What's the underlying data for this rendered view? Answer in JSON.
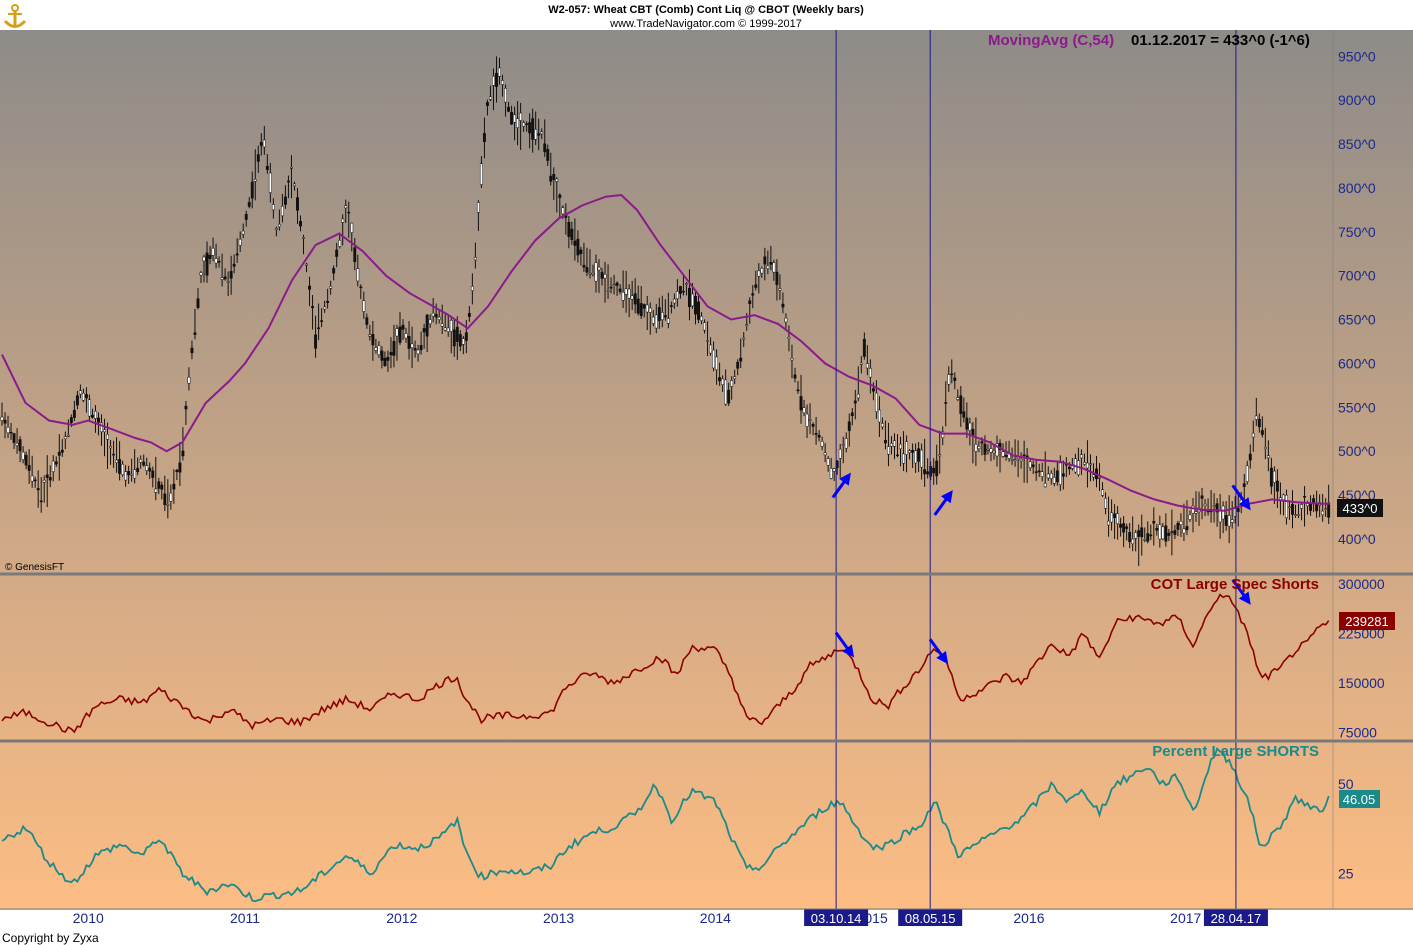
{
  "header": {
    "line1": "W2-057:  Wheat CBT (Comb) Cont Liq @ CBOT  (Weekly bars)",
    "line2": "www.TradeNavigator.com © 1999-2017"
  },
  "footer": {
    "copyright": "Copyright by Zyxa",
    "genesis": "© GenesisFT"
  },
  "colors": {
    "bg_top": "#8e8b88",
    "bg_bottom": "#fdbd84",
    "price": "#000000",
    "moving_avg": "#8b1a8b",
    "cot": "#8b0000",
    "percent": "#1a8a8a",
    "vline": "#1a1a8a",
    "arrow": "#0000ff",
    "axis_text": "#1a2a8a"
  },
  "chart_data": [
    {
      "type": "candlestick",
      "panel": "price",
      "moving_avg_label": "MovingAvg (C,54)",
      "value_label": "01.12.2017 = 433^0 (-1^6)",
      "last_value": "433^0",
      "ylim": [
        360,
        980
      ],
      "yticks": [
        "400^0",
        "450^0",
        "500^0",
        "550^0",
        "600^0",
        "650^0",
        "700^0",
        "750^0",
        "800^0",
        "850^0",
        "900^0",
        "950^0"
      ],
      "ytick_values": [
        400,
        450,
        500,
        550,
        600,
        650,
        700,
        750,
        800,
        850,
        900,
        950
      ],
      "x_range": [
        2009.45,
        2017.92
      ],
      "price_path": [
        [
          2009.45,
          540
        ],
        [
          2009.6,
          490
        ],
        [
          2009.7,
          450
        ],
        [
          2009.85,
          510
        ],
        [
          2009.95,
          570
        ],
        [
          2010.05,
          535
        ],
        [
          2010.15,
          500
        ],
        [
          2010.25,
          470
        ],
        [
          2010.35,
          490
        ],
        [
          2010.45,
          460
        ],
        [
          2010.52,
          440
        ],
        [
          2010.6,
          500
        ],
        [
          2010.65,
          600
        ],
        [
          2010.72,
          700
        ],
        [
          2010.8,
          730
        ],
        [
          2010.9,
          690
        ],
        [
          2011.0,
          760
        ],
        [
          2011.07,
          820
        ],
        [
          2011.12,
          860
        ],
        [
          2011.2,
          750
        ],
        [
          2011.3,
          820
        ],
        [
          2011.37,
          740
        ],
        [
          2011.45,
          630
        ],
        [
          2011.55,
          690
        ],
        [
          2011.65,
          780
        ],
        [
          2011.72,
          700
        ],
        [
          2011.8,
          630
        ],
        [
          2011.9,
          600
        ],
        [
          2012.0,
          640
        ],
        [
          2012.1,
          610
        ],
        [
          2012.2,
          660
        ],
        [
          2012.3,
          640
        ],
        [
          2012.4,
          620
        ],
        [
          2012.45,
          680
        ],
        [
          2012.5,
          800
        ],
        [
          2012.55,
          900
        ],
        [
          2012.62,
          930
        ],
        [
          2012.7,
          880
        ],
        [
          2012.8,
          870
        ],
        [
          2012.9,
          860
        ],
        [
          2012.98,
          800
        ],
        [
          2013.05,
          760
        ],
        [
          2013.15,
          720
        ],
        [
          2013.25,
          700
        ],
        [
          2013.35,
          690
        ],
        [
          2013.5,
          670
        ],
        [
          2013.6,
          650
        ],
        [
          2013.7,
          660
        ],
        [
          2013.8,
          690
        ],
        [
          2013.9,
          660
        ],
        [
          2014.0,
          600
        ],
        [
          2014.08,
          560
        ],
        [
          2014.15,
          600
        ],
        [
          2014.25,
          690
        ],
        [
          2014.35,
          720
        ],
        [
          2014.42,
          680
        ],
        [
          2014.5,
          590
        ],
        [
          2014.58,
          540
        ],
        [
          2014.68,
          510
        ],
        [
          2014.75,
          470
        ],
        [
          2014.82,
          500
        ],
        [
          2014.9,
          560
        ],
        [
          2014.95,
          620
        ],
        [
          2015.02,
          560
        ],
        [
          2015.1,
          510
        ],
        [
          2015.2,
          500
        ],
        [
          2015.32,
          490
        ],
        [
          2015.4,
          470
        ],
        [
          2015.45,
          520
        ],
        [
          2015.5,
          600
        ],
        [
          2015.55,
          560
        ],
        [
          2015.65,
          510
        ],
        [
          2015.75,
          500
        ],
        [
          2015.85,
          500
        ],
        [
          2015.95,
          490
        ],
        [
          2016.05,
          480
        ],
        [
          2016.15,
          470
        ],
        [
          2016.25,
          480
        ],
        [
          2016.35,
          490
        ],
        [
          2016.45,
          470
        ],
        [
          2016.5,
          430
        ],
        [
          2016.6,
          410
        ],
        [
          2016.7,
          400
        ],
        [
          2016.8,
          410
        ],
        [
          2016.9,
          405
        ],
        [
          2017.0,
          420
        ],
        [
          2017.1,
          440
        ],
        [
          2017.2,
          430
        ],
        [
          2017.28,
          425
        ],
        [
          2017.35,
          440
        ],
        [
          2017.4,
          480
        ],
        [
          2017.45,
          540
        ],
        [
          2017.5,
          520
        ],
        [
          2017.55,
          470
        ],
        [
          2017.62,
          440
        ],
        [
          2017.72,
          430
        ],
        [
          2017.8,
          440
        ],
        [
          2017.88,
          435
        ],
        [
          2017.92,
          433
        ]
      ],
      "moving_avg": [
        [
          2009.45,
          610
        ],
        [
          2009.6,
          555
        ],
        [
          2009.75,
          535
        ],
        [
          2009.9,
          530
        ],
        [
          2010.0,
          535
        ],
        [
          2010.15,
          525
        ],
        [
          2010.3,
          515
        ],
        [
          2010.4,
          510
        ],
        [
          2010.5,
          500
        ],
        [
          2010.6,
          510
        ],
        [
          2010.75,
          555
        ],
        [
          2010.9,
          580
        ],
        [
          2011.0,
          600
        ],
        [
          2011.15,
          640
        ],
        [
          2011.3,
          695
        ],
        [
          2011.45,
          735
        ],
        [
          2011.6,
          748
        ],
        [
          2011.75,
          728
        ],
        [
          2011.9,
          700
        ],
        [
          2012.05,
          680
        ],
        [
          2012.2,
          665
        ],
        [
          2012.3,
          655
        ],
        [
          2012.42,
          640
        ],
        [
          2012.55,
          665
        ],
        [
          2012.7,
          705
        ],
        [
          2012.85,
          740
        ],
        [
          2013.0,
          765
        ],
        [
          2013.15,
          780
        ],
        [
          2013.3,
          790
        ],
        [
          2013.4,
          792
        ],
        [
          2013.5,
          775
        ],
        [
          2013.65,
          735
        ],
        [
          2013.8,
          700
        ],
        [
          2013.95,
          665
        ],
        [
          2014.1,
          650
        ],
        [
          2014.25,
          655
        ],
        [
          2014.4,
          645
        ],
        [
          2014.55,
          625
        ],
        [
          2014.7,
          600
        ],
        [
          2014.85,
          585
        ],
        [
          2015.0,
          575
        ],
        [
          2015.15,
          560
        ],
        [
          2015.3,
          530
        ],
        [
          2015.45,
          520
        ],
        [
          2015.6,
          520
        ],
        [
          2015.75,
          510
        ],
        [
          2015.9,
          495
        ],
        [
          2016.05,
          490
        ],
        [
          2016.2,
          488
        ],
        [
          2016.35,
          480
        ],
        [
          2016.5,
          468
        ],
        [
          2016.65,
          455
        ],
        [
          2016.8,
          445
        ],
        [
          2016.95,
          438
        ],
        [
          2017.1,
          433
        ],
        [
          2017.25,
          432
        ],
        [
          2017.4,
          440
        ],
        [
          2017.55,
          445
        ],
        [
          2017.7,
          442
        ],
        [
          2017.85,
          440
        ],
        [
          2017.92,
          440
        ]
      ]
    },
    {
      "type": "line",
      "panel": "cot",
      "label": "COT Large Spec Shorts",
      "last_value": "239281",
      "ylim": [
        62000,
        315000
      ],
      "yticks": [
        "75000",
        "150000",
        "225000",
        "300000"
      ],
      "ytick_values": [
        75000,
        150000,
        225000,
        300000
      ],
      "path": [
        [
          2009.45,
          95000
        ],
        [
          2009.6,
          105000
        ],
        [
          2009.75,
          90000
        ],
        [
          2009.9,
          75000
        ],
        [
          2010.05,
          115000
        ],
        [
          2010.2,
          125000
        ],
        [
          2010.35,
          120000
        ],
        [
          2010.45,
          140000
        ],
        [
          2010.6,
          115000
        ],
        [
          2010.75,
          90000
        ],
        [
          2010.9,
          110000
        ],
        [
          2011.05,
          85000
        ],
        [
          2011.2,
          95000
        ],
        [
          2011.35,
          90000
        ],
        [
          2011.5,
          110000
        ],
        [
          2011.65,
          125000
        ],
        [
          2011.8,
          110000
        ],
        [
          2011.95,
          135000
        ],
        [
          2012.1,
          125000
        ],
        [
          2012.25,
          150000
        ],
        [
          2012.35,
          160000
        ],
        [
          2012.4,
          130000
        ],
        [
          2012.5,
          95000
        ],
        [
          2012.65,
          100000
        ],
        [
          2012.8,
          100000
        ],
        [
          2012.95,
          105000
        ],
        [
          2013.05,
          145000
        ],
        [
          2013.2,
          165000
        ],
        [
          2013.35,
          150000
        ],
        [
          2013.5,
          170000
        ],
        [
          2013.65,
          190000
        ],
        [
          2013.75,
          160000
        ],
        [
          2013.85,
          205000
        ],
        [
          2014.0,
          200000
        ],
        [
          2014.1,
          160000
        ],
        [
          2014.2,
          95000
        ],
        [
          2014.3,
          90000
        ],
        [
          2014.4,
          115000
        ],
        [
          2014.5,
          140000
        ],
        [
          2014.6,
          175000
        ],
        [
          2014.72,
          190000
        ],
        [
          2014.8,
          205000
        ],
        [
          2014.9,
          175000
        ],
        [
          2015.0,
          125000
        ],
        [
          2015.1,
          115000
        ],
        [
          2015.2,
          145000
        ],
        [
          2015.3,
          170000
        ],
        [
          2015.4,
          205000
        ],
        [
          2015.5,
          170000
        ],
        [
          2015.55,
          125000
        ],
        [
          2015.7,
          140000
        ],
        [
          2015.85,
          160000
        ],
        [
          2015.95,
          150000
        ],
        [
          2016.05,
          180000
        ],
        [
          2016.15,
          210000
        ],
        [
          2016.25,
          190000
        ],
        [
          2016.35,
          225000
        ],
        [
          2016.45,
          185000
        ],
        [
          2016.55,
          240000
        ],
        [
          2016.65,
          250000
        ],
        [
          2016.75,
          245000
        ],
        [
          2016.85,
          240000
        ],
        [
          2016.95,
          250000
        ],
        [
          2017.05,
          205000
        ],
        [
          2017.15,
          260000
        ],
        [
          2017.2,
          280000
        ],
        [
          2017.3,
          275000
        ],
        [
          2017.4,
          220000
        ],
        [
          2017.48,
          155000
        ],
        [
          2017.6,
          170000
        ],
        [
          2017.7,
          200000
        ],
        [
          2017.78,
          210000
        ],
        [
          2017.85,
          235000
        ],
        [
          2017.92,
          239281
        ]
      ]
    },
    {
      "type": "line",
      "panel": "percent",
      "label": "Percent Large SHORTS",
      "last_value": "46.05",
      "ylim": [
        15,
        62
      ],
      "yticks": [
        "25",
        "50"
      ],
      "ytick_values": [
        25,
        50
      ],
      "path": [
        [
          2009.45,
          34
        ],
        [
          2009.6,
          38
        ],
        [
          2009.75,
          28
        ],
        [
          2009.9,
          22
        ],
        [
          2010.05,
          30
        ],
        [
          2010.2,
          33
        ],
        [
          2010.35,
          30
        ],
        [
          2010.45,
          35
        ],
        [
          2010.6,
          25
        ],
        [
          2010.75,
          20
        ],
        [
          2010.9,
          22
        ],
        [
          2011.05,
          18
        ],
        [
          2011.2,
          19
        ],
        [
          2011.35,
          20
        ],
        [
          2011.5,
          25
        ],
        [
          2011.65,
          30
        ],
        [
          2011.8,
          25
        ],
        [
          2011.95,
          33
        ],
        [
          2012.1,
          32
        ],
        [
          2012.25,
          35
        ],
        [
          2012.35,
          40
        ],
        [
          2012.4,
          32
        ],
        [
          2012.5,
          24
        ],
        [
          2012.65,
          26
        ],
        [
          2012.8,
          25
        ],
        [
          2012.95,
          27
        ],
        [
          2013.05,
          32
        ],
        [
          2013.2,
          36
        ],
        [
          2013.35,
          38
        ],
        [
          2013.5,
          42
        ],
        [
          2013.62,
          50
        ],
        [
          2013.72,
          40
        ],
        [
          2013.85,
          48
        ],
        [
          2014.0,
          45
        ],
        [
          2014.1,
          35
        ],
        [
          2014.2,
          26
        ],
        [
          2014.3,
          27
        ],
        [
          2014.4,
          32
        ],
        [
          2014.5,
          36
        ],
        [
          2014.6,
          40
        ],
        [
          2014.72,
          44
        ],
        [
          2014.8,
          45
        ],
        [
          2014.9,
          38
        ],
        [
          2015.0,
          32
        ],
        [
          2015.1,
          33
        ],
        [
          2015.2,
          36
        ],
        [
          2015.3,
          38
        ],
        [
          2015.4,
          45
        ],
        [
          2015.5,
          35
        ],
        [
          2015.55,
          30
        ],
        [
          2015.7,
          34
        ],
        [
          2015.85,
          38
        ],
        [
          2015.95,
          40
        ],
        [
          2016.05,
          45
        ],
        [
          2016.15,
          50
        ],
        [
          2016.25,
          45
        ],
        [
          2016.35,
          48
        ],
        [
          2016.45,
          42
        ],
        [
          2016.55,
          50
        ],
        [
          2016.65,
          52
        ],
        [
          2016.75,
          55
        ],
        [
          2016.85,
          50
        ],
        [
          2016.95,
          52
        ],
        [
          2017.05,
          42
        ],
        [
          2017.15,
          55
        ],
        [
          2017.2,
          60
        ],
        [
          2017.3,
          55
        ],
        [
          2017.4,
          45
        ],
        [
          2017.48,
          32
        ],
        [
          2017.6,
          38
        ],
        [
          2017.7,
          46
        ],
        [
          2017.78,
          44
        ],
        [
          2017.85,
          42
        ],
        [
          2017.92,
          46.05
        ]
      ]
    }
  ],
  "x_axis": {
    "years": [
      "2010",
      "2011",
      "2012",
      "2013",
      "2014",
      "2015",
      "2016",
      "2017"
    ],
    "year_values": [
      2010,
      2011,
      2012,
      2013,
      2014,
      2015,
      2016,
      2017
    ]
  },
  "markers": [
    {
      "label": "03.10.14",
      "x": 2014.77
    },
    {
      "label": "08.05.15",
      "x": 2015.37
    },
    {
      "label": "28.04.17",
      "x": 2017.32
    }
  ],
  "arrows": [
    {
      "panel": "price",
      "x": 2014.8,
      "y": 470,
      "dir": "up"
    },
    {
      "panel": "price",
      "x": 2015.45,
      "y": 450,
      "dir": "up"
    },
    {
      "panel": "price",
      "x": 2017.35,
      "y": 445,
      "dir": "down"
    },
    {
      "panel": "cot",
      "x": 2014.82,
      "y": 205000,
      "dir": "down"
    },
    {
      "panel": "cot",
      "x": 2015.42,
      "y": 195000,
      "dir": "down"
    },
    {
      "panel": "cot",
      "x": 2017.35,
      "y": 285000,
      "dir": "down"
    }
  ]
}
